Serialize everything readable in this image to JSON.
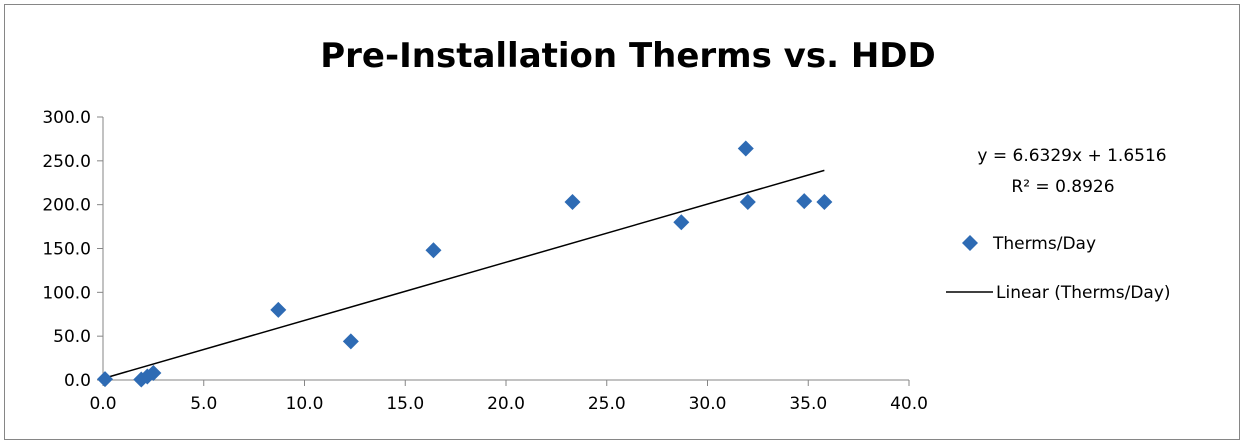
{
  "chart_data": {
    "type": "scatter",
    "title": "Pre-Installation Therms vs. HDD",
    "xlabel": "",
    "ylabel": "",
    "xlim": [
      0,
      40
    ],
    "ylim": [
      0,
      300
    ],
    "x_ticks": [
      "0.0",
      "5.0",
      "10.0",
      "15.0",
      "20.0",
      "25.0",
      "30.0",
      "35.0",
      "40.0"
    ],
    "y_ticks": [
      "0.0",
      "50.0",
      "100.0",
      "150.0",
      "200.0",
      "250.0",
      "300.0"
    ],
    "grid": false,
    "legend_position": "right",
    "series": [
      {
        "name": "Therms/Day",
        "marker": "diamond",
        "color": "#2E6BB4",
        "x": [
          0.1,
          1.9,
          2.2,
          2.5,
          8.7,
          12.3,
          16.4,
          23.3,
          28.7,
          31.9,
          32.0,
          34.8,
          35.8
        ],
        "y": [
          1.0,
          0.5,
          4.0,
          8.0,
          80.0,
          44.0,
          148.0,
          203.0,
          180.0,
          264.0,
          203.0,
          204.0,
          203.0
        ]
      }
    ],
    "trendline": {
      "name": "Linear (Therms/Day)",
      "type": "linear",
      "slope": 6.6329,
      "intercept": 1.6516,
      "x_range": [
        0.1,
        35.8
      ],
      "color": "#000000"
    },
    "annotations": {
      "equation": "y = 6.6329x + 1.6516",
      "r_squared": "R² = 0.8926"
    }
  }
}
